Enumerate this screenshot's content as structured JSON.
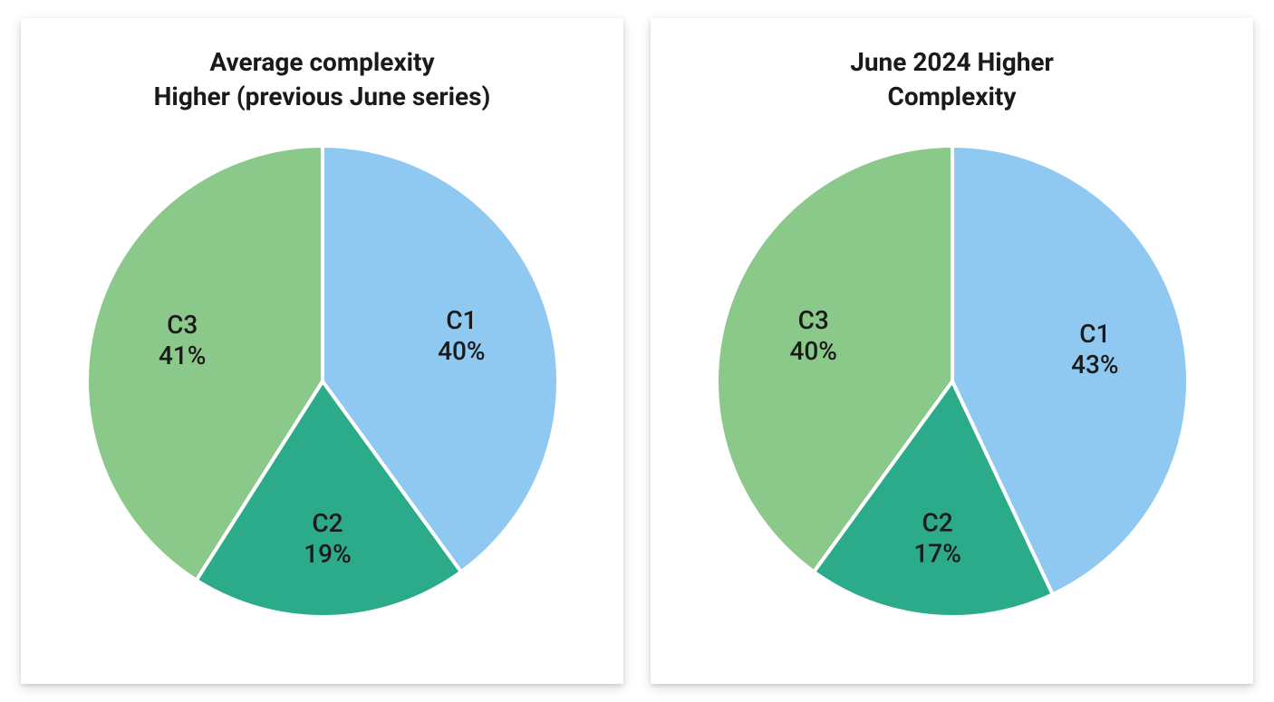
{
  "charts": [
    {
      "title": "Average complexity\nHigher (previous June series)",
      "type": "pie",
      "title_fontsize": 28,
      "label_fontsize": 28,
      "background_color": "#ffffff",
      "stroke_color": "#ffffff",
      "stroke_width": 4,
      "radius": 260,
      "slices": [
        {
          "name": "C1",
          "value": 40,
          "color": "#8fc9f2",
          "label_r": 0.62
        },
        {
          "name": "C2",
          "value": 19,
          "color": "#2bab8a",
          "label_r": 0.67
        },
        {
          "name": "C3",
          "value": 41,
          "color": "#8bc98a",
          "label_r": 0.62
        }
      ]
    },
    {
      "title": "June 2024 Higher\nComplexity",
      "type": "pie",
      "title_fontsize": 28,
      "label_fontsize": 28,
      "background_color": "#ffffff",
      "stroke_color": "#ffffff",
      "stroke_width": 4,
      "radius": 260,
      "slices": [
        {
          "name": "C1",
          "value": 43,
          "color": "#8fc9f2",
          "label_r": 0.62
        },
        {
          "name": "C2",
          "value": 17,
          "color": "#2bab8a",
          "label_r": 0.67
        },
        {
          "name": "C3",
          "value": 40,
          "color": "#8bc98a",
          "label_r": 0.62
        }
      ]
    }
  ]
}
